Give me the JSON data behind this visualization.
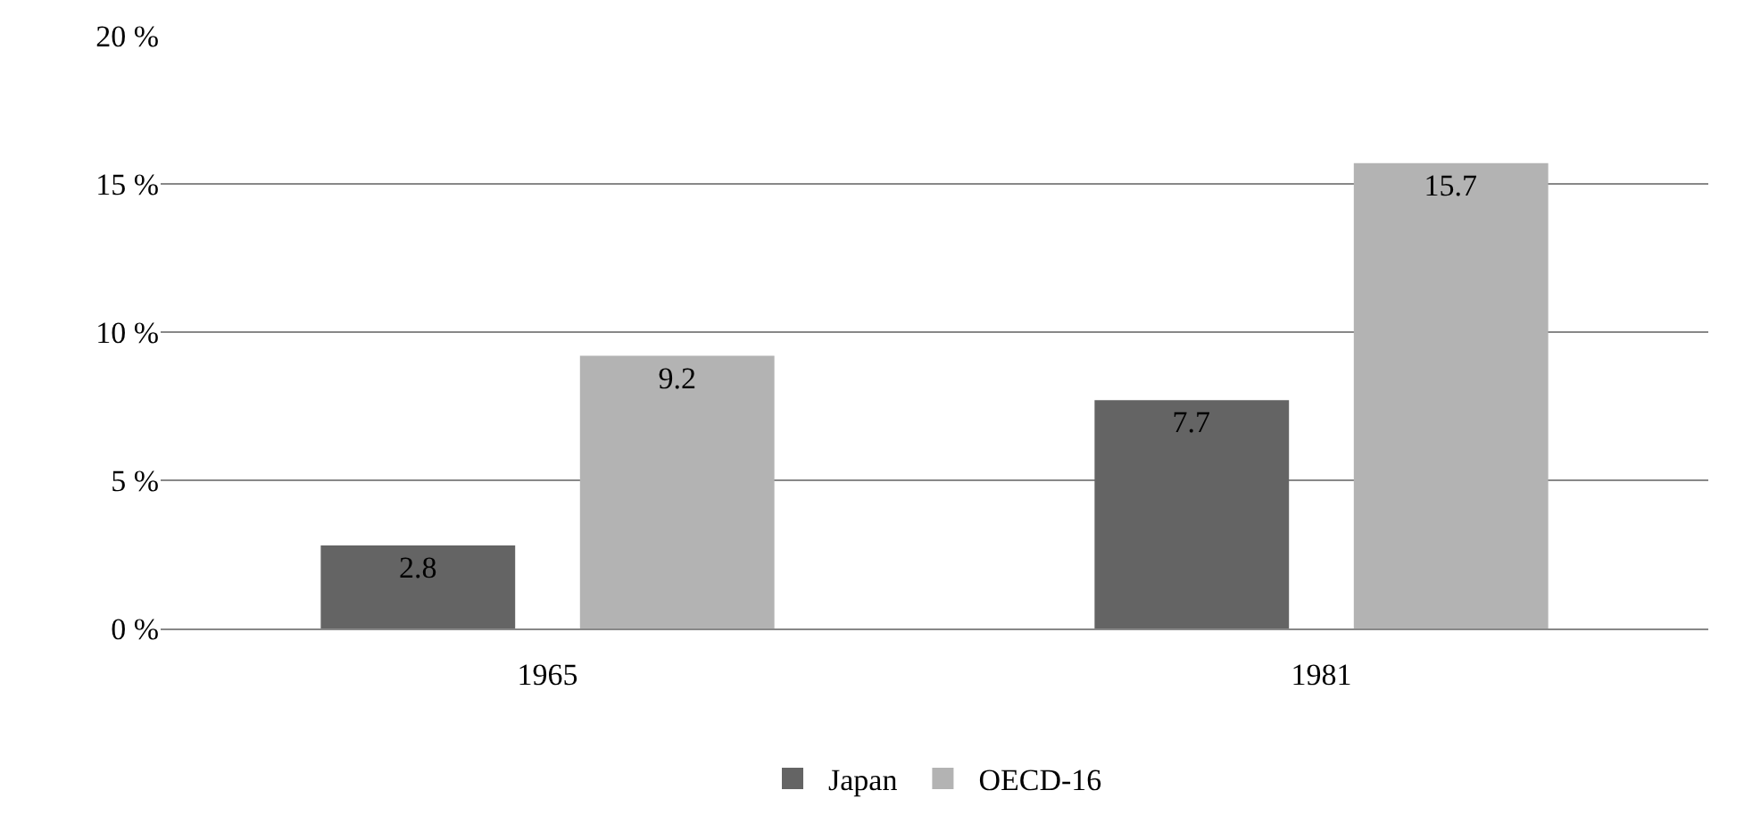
{
  "chart_data": {
    "type": "bar",
    "categories": [
      "1965",
      "1981"
    ],
    "series": [
      {
        "name": "Japan",
        "color": "#646464",
        "values": [
          2.8,
          7.7
        ]
      },
      {
        "name": "OECD-16",
        "color": "#b3b3b3",
        "values": [
          9.2,
          15.7
        ]
      }
    ],
    "ylim": [
      0,
      20
    ],
    "yticks": [
      {
        "value": 0,
        "label": "0 %"
      },
      {
        "value": 5,
        "label": "5 %"
      },
      {
        "value": 10,
        "label": "10 %"
      },
      {
        "value": 15,
        "label": "15 %"
      },
      {
        "value": 20,
        "label": "20 %"
      }
    ],
    "grid": "y",
    "legend": "bottom",
    "data_labels": true
  }
}
